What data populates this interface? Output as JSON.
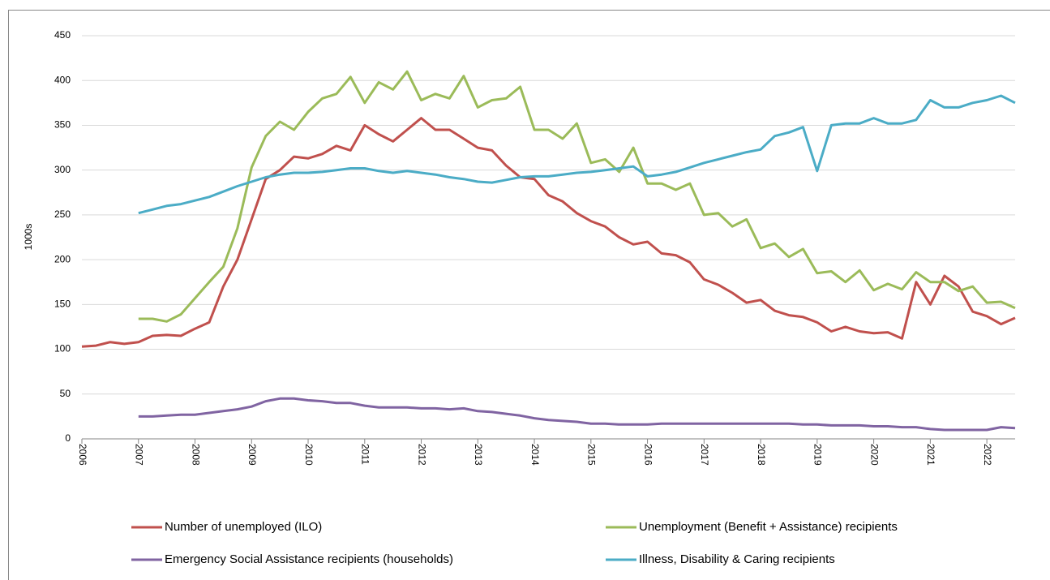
{
  "chart_data": {
    "type": "line",
    "y_label": "1000s",
    "x": [
      2006,
      2006.25,
      2006.5,
      2006.75,
      2007,
      2007.25,
      2007.5,
      2007.75,
      2008,
      2008.25,
      2008.5,
      2008.75,
      2009,
      2009.25,
      2009.5,
      2009.75,
      2010,
      2010.25,
      2010.5,
      2010.75,
      2011,
      2011.25,
      2011.5,
      2011.75,
      2012,
      2012.25,
      2012.5,
      2012.75,
      2013,
      2013.25,
      2013.5,
      2013.75,
      2014,
      2014.25,
      2014.5,
      2014.75,
      2015,
      2015.25,
      2015.5,
      2015.75,
      2016,
      2016.25,
      2016.5,
      2016.75,
      2017,
      2017.25,
      2017.5,
      2017.75,
      2018,
      2018.25,
      2018.5,
      2018.75,
      2019,
      2019.25,
      2019.5,
      2019.75,
      2020,
      2020.25,
      2020.5,
      2020.75,
      2021,
      2021.25,
      2021.5,
      2021.75,
      2022,
      2022.25,
      2022.5
    ],
    "series": [
      {
        "name": "Number of unemployed (ILO)",
        "color": "#c0504d",
        "values": [
          103,
          104,
          108,
          106,
          108,
          115,
          116,
          115,
          123,
          130,
          170,
          200,
          245,
          290,
          300,
          315,
          313,
          318,
          327,
          322,
          350,
          340,
          332,
          345,
          358,
          345,
          345,
          335,
          325,
          322,
          305,
          292,
          290,
          272,
          265,
          252,
          243,
          237,
          225,
          217,
          220,
          207,
          205,
          197,
          178,
          172,
          163,
          152,
          155,
          143,
          138,
          136,
          130,
          120,
          125,
          120,
          118,
          119,
          112,
          175,
          150,
          182,
          170,
          142,
          137,
          128,
          135
        ]
      },
      {
        "name": "Unemployment (Benefit + Assistance) recipients",
        "color": "#9bbb59",
        "values": [
          null,
          null,
          null,
          null,
          134,
          134,
          131,
          139,
          157,
          175,
          192,
          235,
          303,
          338,
          354,
          345,
          365,
          380,
          385,
          404,
          375,
          398,
          390,
          410,
          378,
          385,
          380,
          405,
          370,
          378,
          380,
          393,
          345,
          345,
          335,
          352,
          308,
          312,
          298,
          325,
          285,
          285,
          278,
          285,
          250,
          252,
          237,
          245,
          213,
          218,
          203,
          212,
          185,
          187,
          175,
          188,
          166,
          173,
          167,
          186,
          175,
          175,
          165,
          170,
          152,
          153,
          146
        ]
      },
      {
        "name": "Emergency Social Assistance recipients (households)",
        "color": "#8064a2",
        "values": [
          null,
          null,
          null,
          null,
          25,
          25,
          26,
          27,
          27,
          29,
          31,
          33,
          36,
          42,
          45,
          45,
          43,
          42,
          40,
          40,
          37,
          35,
          35,
          35,
          34,
          34,
          33,
          34,
          31,
          30,
          28,
          26,
          23,
          21,
          20,
          19,
          17,
          17,
          16,
          16,
          16,
          17,
          17,
          17,
          17,
          17,
          17,
          17,
          17,
          17,
          17,
          16,
          16,
          15,
          15,
          15,
          14,
          14,
          13,
          13,
          11,
          10,
          10,
          10,
          10,
          13,
          12
        ]
      },
      {
        "name": "Illness, Disability & Caring recipients",
        "color": "#4bacc6",
        "values": [
          null,
          null,
          null,
          null,
          252,
          256,
          260,
          262,
          266,
          270,
          276,
          282,
          287,
          292,
          295,
          297,
          297,
          298,
          300,
          302,
          302,
          299,
          297,
          299,
          297,
          295,
          292,
          290,
          287,
          286,
          289,
          292,
          293,
          293,
          295,
          297,
          298,
          300,
          302,
          304,
          293,
          295,
          298,
          303,
          308,
          312,
          316,
          320,
          323,
          338,
          342,
          348,
          299,
          350,
          352,
          352,
          358,
          352,
          352,
          356,
          378,
          370,
          370,
          375,
          378,
          383,
          375
        ]
      }
    ],
    "xlim": [
      2006,
      2022.5
    ],
    "xticks": [
      2006,
      2007,
      2008,
      2009,
      2010,
      2011,
      2012,
      2013,
      2014,
      2015,
      2016,
      2017,
      2018,
      2019,
      2020,
      2021,
      2022
    ],
    "ylim": [
      0,
      450
    ],
    "yticks": [
      0,
      50,
      100,
      150,
      200,
      250,
      300,
      350,
      400,
      450
    ],
    "grid": true,
    "legend": "bottom"
  }
}
